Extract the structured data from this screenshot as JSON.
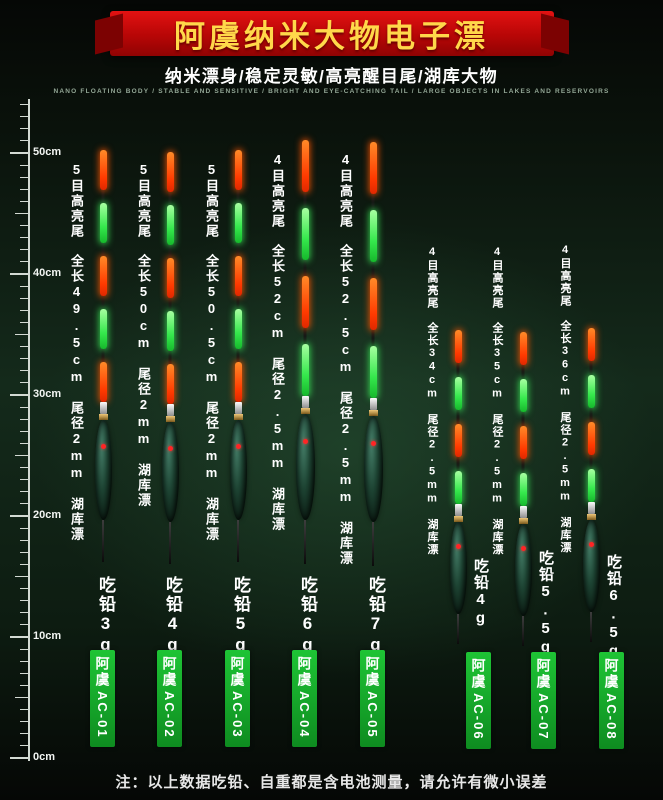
{
  "header": {
    "title": "阿虞纳米大物电子漂",
    "subtitle": "纳米漂身/稳定灵敏/高亮醒目尾/湖库大物",
    "subtitle_en": "NANO FLOATING BODY / STABLE AND SENSITIVE / BRIGHT AND EYE-CATCHING TAIL / LARGE OBJECTS IN LAKES AND RESERVOIRS"
  },
  "ruler": {
    "labels": [
      "50cm",
      "40cm",
      "30cm",
      "20cm",
      "10cm",
      "0cm"
    ]
  },
  "floats": [
    {
      "spec": "5目高亮尾　全长49.5cm　尾径2mm　湖库漂",
      "weight": "吃铅3g",
      "brand": "阿虞",
      "model": "AC-01",
      "segments": [
        "red",
        "green",
        "red",
        "green",
        "red"
      ]
    },
    {
      "spec": "5目高亮尾　全长50cm　尾径2mm　湖库漂",
      "weight": "吃铅4g",
      "brand": "阿虞",
      "model": "AC-02",
      "segments": [
        "red",
        "green",
        "red",
        "green",
        "red"
      ]
    },
    {
      "spec": "5目高亮尾　全长50.5cm　尾径2mm　湖库漂",
      "weight": "吃铅5g",
      "brand": "阿虞",
      "model": "AC-03",
      "segments": [
        "red",
        "green",
        "red",
        "green",
        "red"
      ]
    },
    {
      "spec": "4目高亮尾　全长52cm　尾径2.5mm　湖库漂",
      "weight": "吃铅6g",
      "brand": "阿虞",
      "model": "AC-04",
      "segments": [
        "red",
        "green",
        "red",
        "green"
      ]
    },
    {
      "spec": "4目高亮尾　全长52.5cm　尾径2.5mm　湖库漂",
      "weight": "吃铅7g",
      "brand": "阿虞",
      "model": "AC-05",
      "segments": [
        "red",
        "green",
        "red",
        "green"
      ]
    },
    {
      "spec": "4目高亮尾　全长34cm　尾径2.5mm　湖库漂",
      "weight": "吃铅4g",
      "brand": "阿虞",
      "model": "AC-06",
      "segments": [
        "red",
        "green",
        "red",
        "green"
      ]
    },
    {
      "spec": "4目高亮尾　全长35cm　尾径2.5mm　湖库漂",
      "weight": "吃铅5.5g",
      "brand": "阿虞",
      "model": "AC-07",
      "segments": [
        "red",
        "green",
        "red",
        "green"
      ]
    },
    {
      "spec": "4目高亮尾　全长36cm　尾径2.5mm　湖库漂",
      "weight": "吃铅6.5g",
      "brand": "阿虞",
      "model": "AC-08",
      "segments": [
        "red",
        "green",
        "red",
        "green"
      ]
    }
  ],
  "colors": {
    "banner_red": "#c00a0a",
    "title_gold": "#ffd84a",
    "segment_red": "#ff3a00",
    "segment_green": "#35e84c",
    "badge_green": "#17a82b",
    "background_green": "#142a1b"
  },
  "footer": {
    "note": "注：以上数据吃铅、自重都是含电池测量，请允许有微小误差"
  }
}
